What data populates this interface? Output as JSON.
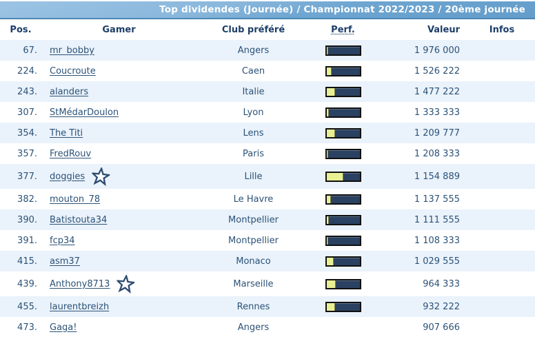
{
  "header": {
    "title": "Top dividendes (Journée) / Championnat 2022/2023 / 20ème journée"
  },
  "columns": {
    "pos": "Pos.",
    "gamer": "Gamer",
    "club": "Club préféré",
    "perf": "Perf.",
    "valeur": "Valeur",
    "infos": "Infos"
  },
  "colors": {
    "titlebar_gradient_top": "#9cc4e4",
    "titlebar_gradient_bottom": "#649cca",
    "titlebar_border": "#4c87b4",
    "title_text": "#ffffff",
    "column_header_text": "#1d3e68",
    "row_stripe": "#eaf2fb",
    "row_white": "#ffffff",
    "body_text": "#2b5277",
    "bar_border": "#101010",
    "bar_track": "#2a4161",
    "bar_fill": "#e9f094",
    "star_outline": "#2f4d71"
  },
  "icons": [
    {
      "name": "star-icon",
      "meaning": "favorite gamer marker"
    }
  ],
  "rows": [
    {
      "pos": "67.",
      "gamer": "mr_bobby",
      "club": "Angers",
      "perf_pct": 6,
      "valeur": "1 976 000",
      "starred": false,
      "infos": ""
    },
    {
      "pos": "224.",
      "gamer": "Coucroute",
      "club": "Caen",
      "perf_pct": 15,
      "valeur": "1 526 222",
      "starred": false,
      "infos": ""
    },
    {
      "pos": "243.",
      "gamer": "alanders",
      "club": "Italie",
      "perf_pct": 27,
      "valeur": "1 477 222",
      "starred": false,
      "infos": ""
    },
    {
      "pos": "307.",
      "gamer": "StMédarDoulon",
      "club": "Lyon",
      "perf_pct": 8,
      "valeur": "1 333 333",
      "starred": false,
      "infos": ""
    },
    {
      "pos": "354.",
      "gamer": "The Titi",
      "club": "Lens",
      "perf_pct": 27,
      "valeur": "1 209 777",
      "starred": false,
      "infos": ""
    },
    {
      "pos": "357.",
      "gamer": "FredRouv",
      "club": "Paris",
      "perf_pct": 6,
      "valeur": "1 208 333",
      "starred": false,
      "infos": ""
    },
    {
      "pos": "377.",
      "gamer": "doggies",
      "club": "Lille",
      "perf_pct": 50,
      "valeur": "1 154 889",
      "starred": true,
      "infos": ""
    },
    {
      "pos": "382.",
      "gamer": "mouton_78",
      "club": "Le Havre",
      "perf_pct": 14,
      "valeur": "1 137 555",
      "starred": false,
      "infos": ""
    },
    {
      "pos": "390.",
      "gamer": "Batistouta34",
      "club": "Montpellier",
      "perf_pct": 7,
      "valeur": "1 111 555",
      "starred": false,
      "infos": ""
    },
    {
      "pos": "391.",
      "gamer": "fcp34",
      "club": "Montpellier",
      "perf_pct": 6,
      "valeur": "1 108 333",
      "starred": false,
      "infos": ""
    },
    {
      "pos": "415.",
      "gamer": "asm37",
      "club": "Monaco",
      "perf_pct": 21,
      "valeur": "1 029 555",
      "starred": false,
      "infos": ""
    },
    {
      "pos": "439.",
      "gamer": "Anthony8713",
      "club": "Marseille",
      "perf_pct": 28,
      "valeur": "964 333",
      "starred": true,
      "infos": ""
    },
    {
      "pos": "455.",
      "gamer": "laurentbreizh",
      "club": "Rennes",
      "perf_pct": 25,
      "valeur": "932 222",
      "starred": false,
      "infos": ""
    },
    {
      "pos": "473.",
      "gamer": "Gaga!",
      "club": "Angers",
      "perf_pct": null,
      "valeur": "907 666",
      "starred": false,
      "infos": ""
    }
  ]
}
